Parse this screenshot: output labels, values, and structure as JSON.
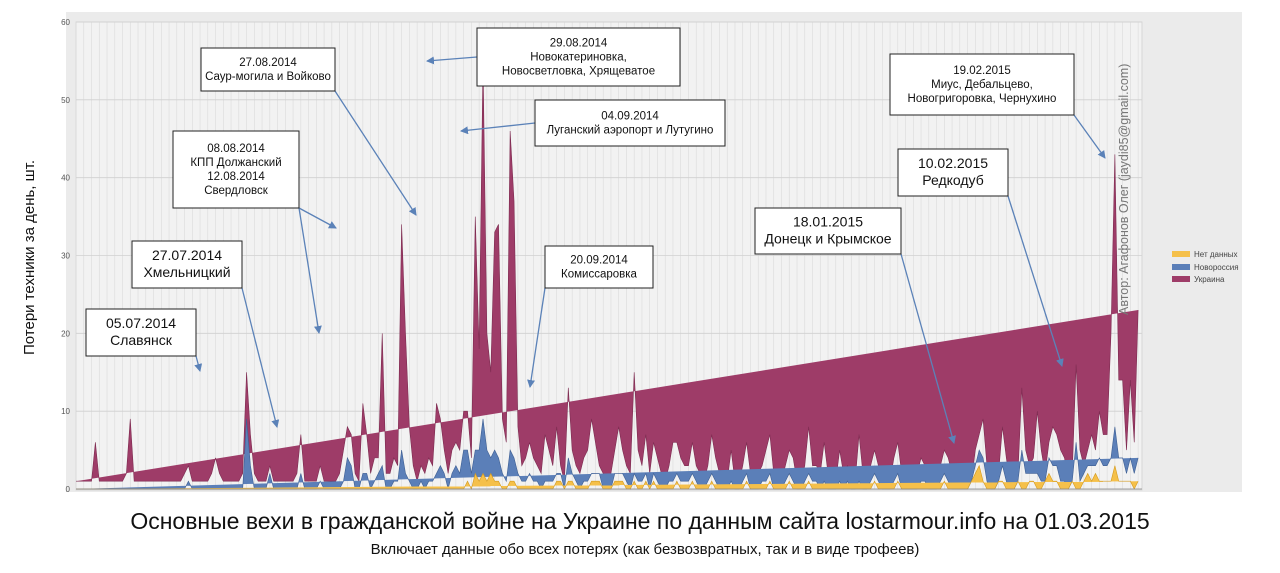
{
  "chart_data": {
    "type": "area",
    "stacked": true,
    "title": "Основные вехи в гражданской войне на Украине по данным сайта lostarmour.info на 01.03.2015",
    "subtitle": "Включает данные обо всех потерях (как безвозвратных, так и в виде трофеев)",
    "ylabel": "Потери техники за день, шт.",
    "xlabel": "",
    "ylim": [
      0,
      60
    ],
    "yticks": [
      "0",
      "10",
      "20",
      "30",
      "40",
      "50",
      "60"
    ],
    "grid": true,
    "legend_position": "right",
    "author": "Автор: Агафонов Олег (jaydi85@gmail.com)",
    "series": [
      {
        "name": "Нет данных",
        "color": "#f5c04a"
      },
      {
        "name": "Новороссия",
        "color": "#5b7fb8"
      },
      {
        "name": "Украина",
        "color": "#9e3c68"
      }
    ],
    "totals": [
      1,
      1,
      1,
      1,
      1,
      6,
      1,
      1,
      1,
      1,
      1,
      1,
      1,
      2,
      9,
      1,
      1,
      1,
      1,
      1,
      1,
      1,
      1,
      1,
      1,
      1,
      1,
      1,
      2,
      3,
      1,
      1,
      1,
      1,
      1,
      2,
      4,
      2,
      1,
      1,
      1,
      1,
      1,
      2,
      15,
      7,
      2,
      1,
      1,
      1,
      3,
      1,
      1,
      1,
      1,
      1,
      1,
      2,
      7,
      1,
      1,
      1,
      1,
      3,
      1,
      1,
      1,
      1,
      2,
      5,
      8,
      7,
      2,
      1,
      11,
      7,
      2,
      4,
      4,
      20,
      2,
      2,
      4,
      3,
      34,
      20,
      8,
      3,
      1,
      3,
      2,
      4,
      3,
      11,
      9,
      5,
      2,
      5,
      6,
      5,
      10,
      10,
      4,
      35,
      18,
      55,
      20,
      15,
      33,
      34,
      9,
      6,
      46,
      37,
      8,
      3,
      4,
      6,
      4,
      3,
      2,
      7,
      5,
      3,
      8,
      3,
      1,
      13,
      5,
      3,
      2,
      4,
      5,
      9,
      6,
      3,
      2,
      1,
      2,
      5,
      8,
      5,
      3,
      2,
      15,
      5,
      3,
      7,
      2,
      6,
      4,
      2,
      1,
      3,
      6,
      6,
      4,
      3,
      3,
      6,
      3,
      2,
      1,
      3,
      7,
      4,
      2,
      2,
      1,
      5,
      1,
      1,
      3,
      6,
      2,
      2,
      2,
      3,
      5,
      7,
      2,
      2,
      1,
      3,
      5,
      4,
      1,
      1,
      3,
      8,
      3,
      3,
      2,
      6,
      2,
      2,
      1,
      5,
      2,
      3,
      2,
      1,
      7,
      2,
      2,
      3,
      5,
      3,
      1,
      1,
      1,
      4,
      6,
      2,
      1,
      1,
      1,
      2,
      4,
      3,
      1,
      1,
      1,
      3,
      5,
      4,
      2,
      1,
      1,
      1,
      1,
      1,
      5,
      7,
      9,
      3,
      2,
      1,
      2,
      8,
      4,
      1,
      2,
      2,
      13,
      5,
      3,
      4,
      10,
      5,
      2,
      6,
      8,
      7,
      5,
      4,
      1,
      2,
      16,
      5,
      3,
      5,
      7,
      5,
      10,
      7,
      7,
      20,
      43,
      14,
      14,
      5,
      14,
      6,
      23,
      12
    ],
    "novorossiya": [
      0,
      0,
      0,
      0,
      0,
      0,
      0,
      0,
      0,
      0,
      0,
      0,
      0,
      0,
      0,
      0,
      0,
      0,
      0,
      0,
      0,
      0,
      0,
      0,
      0,
      0,
      0,
      0,
      0,
      1,
      0,
      0,
      0,
      0,
      0,
      0,
      0,
      0,
      0,
      0,
      0,
      0,
      0,
      0,
      9,
      3,
      0,
      0,
      0,
      0,
      2,
      0,
      0,
      0,
      0,
      0,
      0,
      0,
      2,
      0,
      0,
      0,
      0,
      1,
      0,
      0,
      0,
      0,
      0,
      1,
      4,
      3,
      0,
      0,
      2,
      2,
      0,
      1,
      2,
      3,
      0,
      0,
      1,
      1,
      5,
      2,
      1,
      0,
      0,
      1,
      0,
      1,
      1,
      2,
      3,
      2,
      0,
      2,
      3,
      2,
      5,
      4,
      2,
      3,
      4,
      7,
      4,
      2,
      4,
      3,
      2,
      1,
      4,
      3,
      2,
      1,
      1,
      2,
      1,
      1,
      0,
      1,
      1,
      1,
      1,
      1,
      0,
      3,
      1,
      1,
      0,
      1,
      1,
      1,
      1,
      1,
      0,
      0,
      0,
      1,
      1,
      1,
      1,
      0,
      1,
      1,
      1,
      1,
      0,
      1,
      1,
      0,
      0,
      1,
      1,
      1,
      1,
      1,
      1,
      1,
      1,
      0,
      0,
      1,
      1,
      1,
      0,
      0,
      0,
      1,
      0,
      0,
      1,
      1,
      0,
      0,
      0,
      1,
      1,
      1,
      0,
      0,
      0,
      1,
      1,
      1,
      0,
      0,
      1,
      1,
      1,
      1,
      0,
      1,
      0,
      0,
      0,
      1,
      0,
      1,
      0,
      0,
      1,
      0,
      0,
      1,
      1,
      1,
      0,
      0,
      0,
      1,
      1,
      0,
      0,
      0,
      0,
      0,
      1,
      1,
      0,
      0,
      0,
      1,
      1,
      1,
      0,
      0,
      0,
      0,
      0,
      0,
      1,
      2,
      3,
      1,
      0,
      0,
      0,
      2,
      1,
      0,
      0,
      0,
      5,
      2,
      1,
      1,
      2,
      1,
      0,
      2,
      2,
      2,
      1,
      1,
      0,
      0,
      6,
      1,
      1,
      1,
      2,
      1,
      3,
      2,
      2,
      3,
      5,
      3,
      3,
      1,
      3,
      2,
      3,
      2
    ],
    "no_data": [
      0,
      0,
      0,
      0,
      0,
      0,
      0,
      0,
      0,
      0,
      0,
      0,
      0,
      0,
      0,
      0,
      0,
      0,
      0,
      0,
      0,
      0,
      0,
      0,
      0,
      0,
      0,
      0,
      0,
      0,
      0,
      0,
      0,
      0,
      0,
      0,
      0,
      0,
      0,
      0,
      0,
      0,
      0,
      0,
      0,
      0,
      0,
      0,
      0,
      0,
      0,
      0,
      0,
      0,
      0,
      0,
      0,
      0,
      0,
      0,
      0,
      0,
      0,
      0,
      0,
      0,
      0,
      0,
      0,
      0,
      0,
      0,
      0,
      0,
      0,
      0,
      0,
      0,
      0,
      0,
      0,
      0,
      0,
      0,
      0,
      0,
      0,
      0,
      0,
      0,
      0,
      0,
      0,
      0,
      0,
      0,
      0,
      0,
      0,
      0,
      0,
      1,
      0,
      2,
      1,
      2,
      1,
      2,
      1,
      1,
      0,
      0,
      1,
      1,
      0,
      0,
      0,
      0,
      0,
      0,
      0,
      0,
      0,
      0,
      1,
      1,
      0,
      1,
      1,
      0,
      0,
      0,
      0,
      1,
      1,
      1,
      0,
      0,
      0,
      1,
      1,
      1,
      0,
      0,
      1,
      0,
      0,
      1,
      0,
      1,
      0,
      0,
      0,
      0,
      0,
      1,
      0,
      0,
      0,
      1,
      0,
      0,
      0,
      0,
      1,
      0,
      0,
      0,
      0,
      0,
      0,
      0,
      0,
      1,
      0,
      0,
      0,
      0,
      0,
      1,
      0,
      0,
      0,
      0,
      1,
      0,
      0,
      0,
      0,
      1,
      0,
      0,
      0,
      0,
      0,
      0,
      0,
      0,
      0,
      0,
      0,
      0,
      0,
      0,
      0,
      0,
      1,
      0,
      0,
      0,
      0,
      0,
      1,
      0,
      0,
      0,
      0,
      0,
      0,
      0,
      0,
      0,
      0,
      0,
      1,
      0,
      0,
      0,
      0,
      0,
      0,
      1,
      2,
      3,
      1,
      0,
      0,
      0,
      1,
      1,
      0,
      0,
      0,
      1,
      0,
      0,
      1,
      1,
      0,
      0,
      1,
      2,
      1,
      1,
      0,
      0,
      0,
      1,
      0,
      0,
      1,
      2,
      1,
      2,
      1,
      1,
      1,
      1,
      3,
      1,
      1,
      1,
      1,
      0,
      1
    ]
  },
  "annotations": [
    {
      "label_lines": [
        "05.07.2014",
        "Славянск"
      ]
    },
    {
      "label_lines": [
        "27.07.2014",
        "Хмельницкий"
      ]
    },
    {
      "label_lines": [
        "08.08.2014",
        "КПП Должанский",
        "12.08.2014",
        "Свердловск"
      ]
    },
    {
      "label_lines": [
        "27.08.2014",
        "Саур-могила и Войково"
      ]
    },
    {
      "label_lines": [
        "29.08.2014",
        "Новокатериновка,",
        "Новосветловка, Хрящеватое"
      ]
    },
    {
      "label_lines": [
        "04.09.2014",
        "Луганский аэропорт и Лутугино"
      ]
    },
    {
      "label_lines": [
        "20.09.2014",
        "Комиссаровка"
      ]
    },
    {
      "label_lines": [
        "18.01.2015",
        "Донецк и Крымское"
      ]
    },
    {
      "label_lines": [
        "10.02.2015",
        "Редкодуб"
      ]
    },
    {
      "label_lines": [
        "19.02.2015",
        "Миус, Дебальцево,",
        "Новогригоровка, Чернухино"
      ]
    }
  ]
}
